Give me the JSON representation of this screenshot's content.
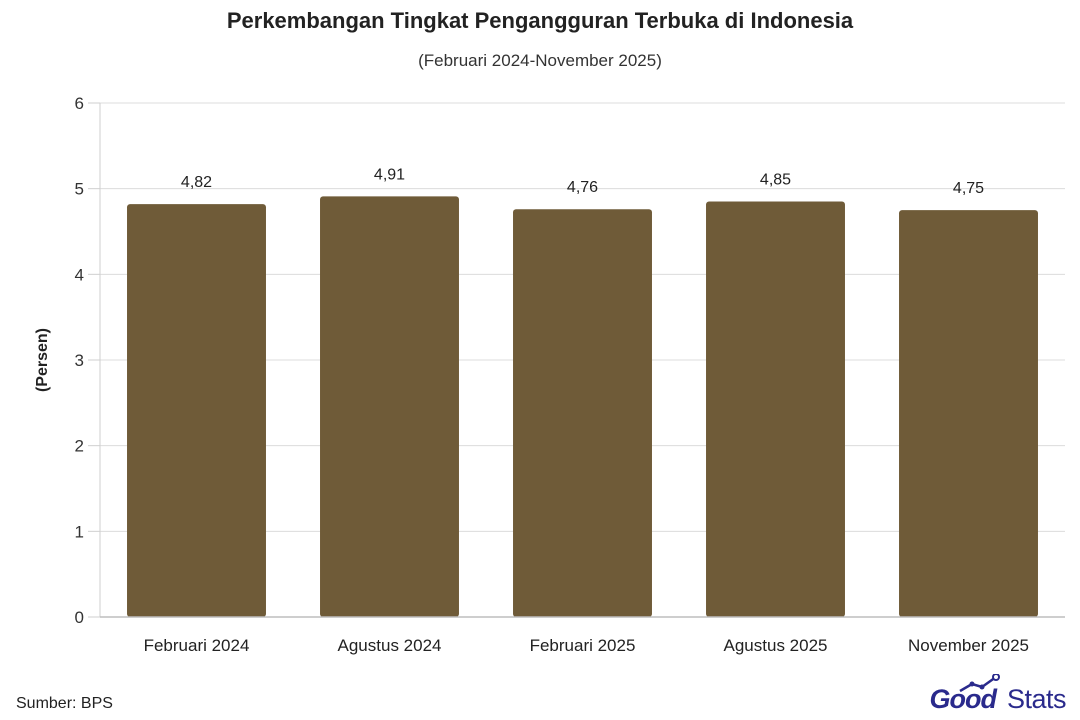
{
  "chart_data": {
    "type": "bar",
    "title": "Perkembangan Tingkat Pengangguran Terbuka di Indonesia",
    "subtitle": "(Februari 2024-November 2025)",
    "xlabel": "",
    "ylabel": "(Persen)",
    "categories": [
      "Februari 2024",
      "Agustus 2024",
      "Februari 2025",
      "Agustus 2025",
      "November 2025"
    ],
    "values": [
      4.82,
      4.91,
      4.76,
      4.85,
      4.75
    ],
    "value_labels": [
      "4,82",
      "4,91",
      "4,76",
      "4,85",
      "4,75"
    ],
    "ylim": [
      0,
      6
    ],
    "yticks": [
      0,
      1,
      2,
      3,
      4,
      5,
      6
    ],
    "grid": true,
    "legend": "none",
    "bar_color": "#6f5b38"
  },
  "footer": {
    "source": "Sumber: BPS"
  },
  "brand": {
    "good": "Good",
    "stats": "Stats",
    "color": "#2a2a8c"
  }
}
